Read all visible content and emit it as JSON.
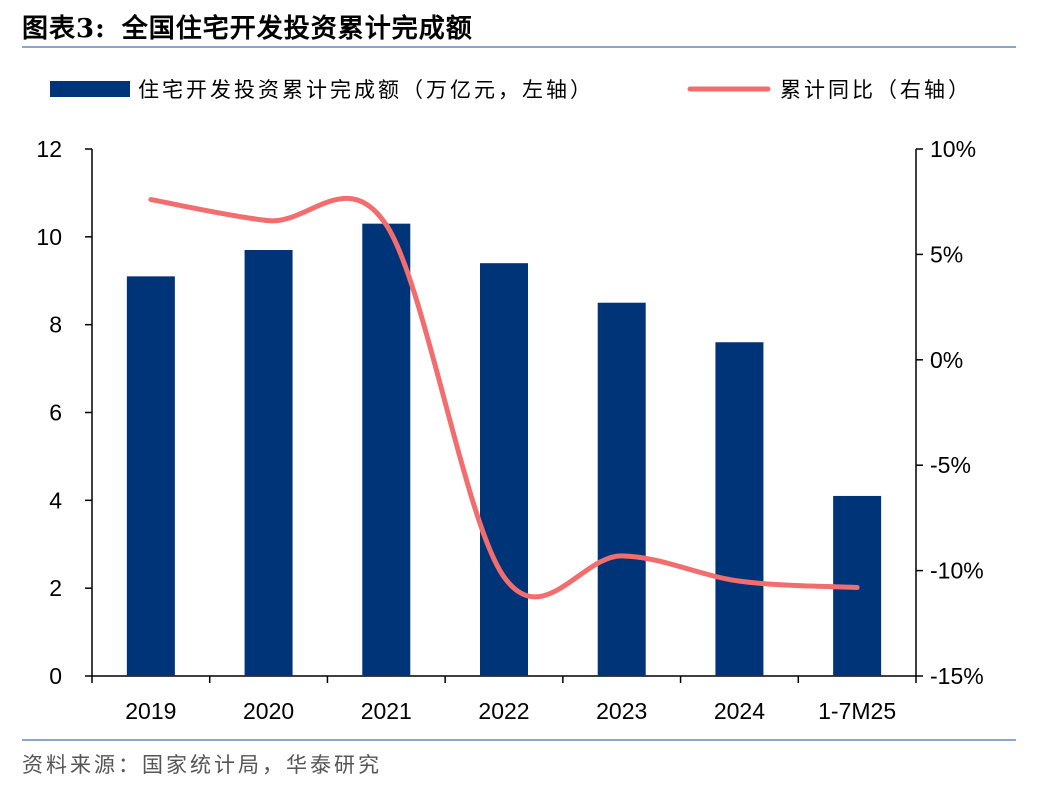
{
  "figure": {
    "title_number": "图表3:",
    "title": "全国住宅开发投资累计完成额",
    "source": "资料来源：国家统计局，华泰研究"
  },
  "colors": {
    "bar": "#003478",
    "line": "#f26d6d",
    "rule": "#8aa6c8"
  },
  "chart_data": {
    "type": "bar",
    "categories": [
      "2019",
      "2020",
      "2021",
      "2022",
      "2023",
      "2024",
      "1-7M25"
    ],
    "series": [
      {
        "name": "住宅开发投资累计完成额（万亿元，左轴）",
        "type": "bar",
        "axis": "left",
        "values": [
          9.1,
          9.7,
          10.3,
          9.4,
          8.5,
          7.6,
          4.1
        ]
      },
      {
        "name": "累计同比（右轴）",
        "type": "line",
        "axis": "right",
        "values": [
          7.6,
          6.6,
          6.4,
          -10.3,
          -9.3,
          -10.5,
          -10.8
        ]
      }
    ],
    "y_left": {
      "min": 0,
      "max": 12,
      "ticks": [
        "0",
        "2",
        "4",
        "6",
        "8",
        "10",
        "12"
      ]
    },
    "y_right": {
      "min": -15,
      "max": 10,
      "ticks": [
        "-15%",
        "-10%",
        "-5%",
        "0%",
        "5%",
        "10%"
      ]
    },
    "legend_position": "top",
    "grid": false
  }
}
